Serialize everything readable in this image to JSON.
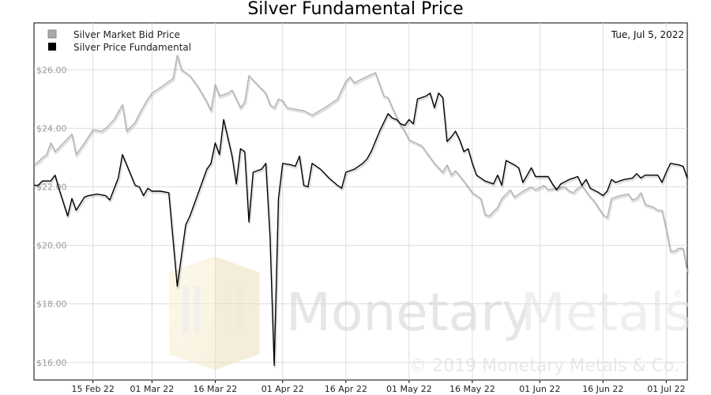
{
  "chart_data": {
    "type": "line",
    "title": "Silver Fundamental Price",
    "date_label": "Tue, Jul 5, 2022",
    "watermark_brand": "MonetaryMetals",
    "watermark_brand_part1": "Monetary",
    "watermark_brand_part2": "Metals",
    "watermark_registered": "®",
    "watermark_copyright": "© 2019 Monetary Metals & Co.",
    "x_range": [
      "2022-02-01",
      "2022-07-06"
    ],
    "ylim": [
      15.4,
      27.6
    ],
    "y_ticks": [
      16,
      18,
      20,
      22,
      24,
      26
    ],
    "y_tick_labels": [
      "$16.00",
      "$18.00",
      "$20.00",
      "$22.00",
      "$24.00",
      "$26.00"
    ],
    "x_ticks": [
      "2022-02-15",
      "2022-03-01",
      "2022-03-16",
      "2022-04-01",
      "2022-04-16",
      "2022-05-01",
      "2022-05-16",
      "2022-06-01",
      "2022-06-16",
      "2022-07-01"
    ],
    "x_tick_labels": [
      "15 Feb 22",
      "01 Mar 22",
      "16 Mar 22",
      "01 Apr 22",
      "16 Apr 22",
      "01 May 22",
      "16 May 22",
      "01 Jun 22",
      "16 Jun 22",
      "01 Jul 22"
    ],
    "grid": true,
    "legend_position": "top-left",
    "series": [
      {
        "name": "Silver Market Bid Price",
        "color": "#b0b0b0",
        "points": [
          [
            "2022-02-01",
            22.75
          ],
          [
            "2022-02-02",
            22.85
          ],
          [
            "2022-02-03",
            23.0
          ],
          [
            "2022-02-04",
            23.1
          ],
          [
            "2022-02-05",
            23.5
          ],
          [
            "2022-02-06",
            23.2
          ],
          [
            "2022-02-08",
            23.5
          ],
          [
            "2022-02-10",
            23.8
          ],
          [
            "2022-02-11",
            23.1
          ],
          [
            "2022-02-13",
            23.5
          ],
          [
            "2022-02-15",
            23.95
          ],
          [
            "2022-02-17",
            23.9
          ],
          [
            "2022-02-18",
            24.0
          ],
          [
            "2022-02-20",
            24.3
          ],
          [
            "2022-02-22",
            24.8
          ],
          [
            "2022-02-23",
            23.9
          ],
          [
            "2022-02-25",
            24.2
          ],
          [
            "2022-02-26",
            24.5
          ],
          [
            "2022-02-28",
            25.0
          ],
          [
            "2022-03-01",
            25.2
          ],
          [
            "2022-03-03",
            25.4
          ],
          [
            "2022-03-05",
            25.6
          ],
          [
            "2022-03-06",
            25.7
          ],
          [
            "2022-03-07",
            26.5
          ],
          [
            "2022-03-08",
            26.0
          ],
          [
            "2022-03-10",
            25.8
          ],
          [
            "2022-03-12",
            25.4
          ],
          [
            "2022-03-14",
            24.9
          ],
          [
            "2022-03-15",
            24.6
          ],
          [
            "2022-03-16",
            25.5
          ],
          [
            "2022-03-17",
            25.1
          ],
          [
            "2022-03-19",
            25.2
          ],
          [
            "2022-03-20",
            25.3
          ],
          [
            "2022-03-22",
            24.7
          ],
          [
            "2022-03-23",
            24.9
          ],
          [
            "2022-03-24",
            25.8
          ],
          [
            "2022-03-26",
            25.5
          ],
          [
            "2022-03-28",
            25.2
          ],
          [
            "2022-03-29",
            24.8
          ],
          [
            "2022-03-30",
            24.7
          ],
          [
            "2022-03-31",
            25.0
          ],
          [
            "2022-04-01",
            24.95
          ],
          [
            "2022-04-02",
            24.7
          ],
          [
            "2022-04-06",
            24.6
          ],
          [
            "2022-04-08",
            24.45
          ],
          [
            "2022-04-11",
            24.7
          ],
          [
            "2022-04-14",
            25.0
          ],
          [
            "2022-04-15",
            25.3
          ],
          [
            "2022-04-16",
            25.6
          ],
          [
            "2022-04-17",
            25.75
          ],
          [
            "2022-04-18",
            25.55
          ],
          [
            "2022-04-20",
            25.7
          ],
          [
            "2022-04-23",
            25.9
          ],
          [
            "2022-04-25",
            25.1
          ],
          [
            "2022-04-26",
            25.05
          ],
          [
            "2022-04-27",
            24.7
          ],
          [
            "2022-04-28",
            24.4
          ],
          [
            "2022-04-29",
            24.1
          ],
          [
            "2022-04-30",
            23.9
          ],
          [
            "2022-05-01",
            23.6
          ],
          [
            "2022-05-04",
            23.4
          ],
          [
            "2022-05-05",
            23.2
          ],
          [
            "2022-05-07",
            22.8
          ],
          [
            "2022-05-09",
            22.5
          ],
          [
            "2022-05-10",
            22.75
          ],
          [
            "2022-05-11",
            22.4
          ],
          [
            "2022-05-12",
            22.55
          ],
          [
            "2022-05-14",
            22.2
          ],
          [
            "2022-05-16",
            21.8
          ],
          [
            "2022-05-18",
            21.6
          ],
          [
            "2022-05-19",
            21.05
          ],
          [
            "2022-05-20",
            21.0
          ],
          [
            "2022-05-22",
            21.3
          ],
          [
            "2022-05-23",
            21.6
          ],
          [
            "2022-05-25",
            21.9
          ],
          [
            "2022-05-26",
            21.65
          ],
          [
            "2022-05-27",
            21.75
          ],
          [
            "2022-05-28",
            21.85
          ],
          [
            "2022-05-30",
            22.0
          ],
          [
            "2022-05-31",
            21.9
          ],
          [
            "2022-06-02",
            22.05
          ],
          [
            "2022-06-03",
            21.9
          ],
          [
            "2022-06-05",
            21.95
          ],
          [
            "2022-06-07",
            22.0
          ],
          [
            "2022-06-08",
            21.85
          ],
          [
            "2022-06-09",
            21.8
          ],
          [
            "2022-06-10",
            21.95
          ],
          [
            "2022-06-11",
            22.05
          ],
          [
            "2022-06-13",
            21.65
          ],
          [
            "2022-06-14",
            21.5
          ],
          [
            "2022-06-16",
            21.05
          ],
          [
            "2022-06-17",
            20.95
          ],
          [
            "2022-06-18",
            21.6
          ],
          [
            "2022-06-20",
            21.7
          ],
          [
            "2022-06-22",
            21.75
          ],
          [
            "2022-06-23",
            21.55
          ],
          [
            "2022-06-24",
            21.6
          ],
          [
            "2022-06-25",
            21.8
          ],
          [
            "2022-06-26",
            21.4
          ],
          [
            "2022-06-28",
            21.3
          ],
          [
            "2022-06-29",
            21.2
          ],
          [
            "2022-06-30",
            21.2
          ],
          [
            "2022-07-01",
            20.55
          ],
          [
            "2022-07-02",
            19.8
          ],
          [
            "2022-07-03",
            19.8
          ],
          [
            "2022-07-04",
            19.9
          ],
          [
            "2022-07-05",
            19.9
          ],
          [
            "2022-07-06",
            19.1
          ]
        ]
      },
      {
        "name": "Silver Price Fundamental",
        "color": "#000000",
        "points": [
          [
            "2022-02-01",
            22.05
          ],
          [
            "2022-02-02",
            22.05
          ],
          [
            "2022-02-03",
            22.2
          ],
          [
            "2022-02-05",
            22.2
          ],
          [
            "2022-02-06",
            22.4
          ],
          [
            "2022-02-07",
            21.9
          ],
          [
            "2022-02-09",
            21.0
          ],
          [
            "2022-02-10",
            21.6
          ],
          [
            "2022-02-11",
            21.2
          ],
          [
            "2022-02-13",
            21.65
          ],
          [
            "2022-02-14",
            21.7
          ],
          [
            "2022-02-16",
            21.75
          ],
          [
            "2022-02-18",
            21.7
          ],
          [
            "2022-02-19",
            21.55
          ],
          [
            "2022-02-21",
            22.3
          ],
          [
            "2022-02-22",
            23.1
          ],
          [
            "2022-02-25",
            22.05
          ],
          [
            "2022-02-26",
            22.0
          ],
          [
            "2022-02-27",
            21.7
          ],
          [
            "2022-02-28",
            21.95
          ],
          [
            "2022-03-01",
            21.85
          ],
          [
            "2022-03-03",
            21.85
          ],
          [
            "2022-03-05",
            21.8
          ],
          [
            "2022-03-07",
            18.6
          ],
          [
            "2022-03-09",
            20.7
          ],
          [
            "2022-03-10",
            21.0
          ],
          [
            "2022-03-14",
            22.6
          ],
          [
            "2022-03-15",
            22.8
          ],
          [
            "2022-03-16",
            23.5
          ],
          [
            "2022-03-17",
            23.1
          ],
          [
            "2022-03-18",
            24.3
          ],
          [
            "2022-03-20",
            23.05
          ],
          [
            "2022-03-21",
            22.1
          ],
          [
            "2022-03-22",
            23.3
          ],
          [
            "2022-03-23",
            23.2
          ],
          [
            "2022-03-24",
            20.8
          ],
          [
            "2022-03-25",
            22.5
          ],
          [
            "2022-03-27",
            22.6
          ],
          [
            "2022-03-28",
            22.8
          ],
          [
            "2022-03-29",
            20.3
          ],
          [
            "2022-03-30",
            15.9
          ],
          [
            "2022-03-31",
            21.6
          ],
          [
            "2022-04-01",
            22.8
          ],
          [
            "2022-04-03",
            22.75
          ],
          [
            "2022-04-04",
            22.7
          ],
          [
            "2022-04-05",
            23.05
          ],
          [
            "2022-04-06",
            22.05
          ],
          [
            "2022-04-07",
            22.0
          ],
          [
            "2022-04-08",
            22.8
          ],
          [
            "2022-04-10",
            22.6
          ],
          [
            "2022-04-12",
            22.3
          ],
          [
            "2022-04-14",
            22.05
          ],
          [
            "2022-04-15",
            21.95
          ],
          [
            "2022-04-16",
            22.5
          ],
          [
            "2022-04-18",
            22.6
          ],
          [
            "2022-04-20",
            22.8
          ],
          [
            "2022-04-21",
            22.95
          ],
          [
            "2022-04-22",
            23.2
          ],
          [
            "2022-04-24",
            23.9
          ],
          [
            "2022-04-26",
            24.5
          ],
          [
            "2022-04-27",
            24.35
          ],
          [
            "2022-04-28",
            24.3
          ],
          [
            "2022-04-29",
            24.15
          ],
          [
            "2022-04-30",
            24.1
          ],
          [
            "2022-05-01",
            24.3
          ],
          [
            "2022-05-02",
            24.15
          ],
          [
            "2022-05-03",
            25.0
          ],
          [
            "2022-05-05",
            25.1
          ],
          [
            "2022-05-06",
            25.2
          ],
          [
            "2022-05-07",
            24.7
          ],
          [
            "2022-05-08",
            25.2
          ],
          [
            "2022-05-09",
            25.05
          ],
          [
            "2022-05-10",
            23.55
          ],
          [
            "2022-05-11",
            23.7
          ],
          [
            "2022-05-12",
            23.9
          ],
          [
            "2022-05-13",
            23.6
          ],
          [
            "2022-05-14",
            23.2
          ],
          [
            "2022-05-15",
            23.3
          ],
          [
            "2022-05-16",
            22.8
          ],
          [
            "2022-05-17",
            22.4
          ],
          [
            "2022-05-18",
            22.3
          ],
          [
            "2022-05-19",
            22.2
          ],
          [
            "2022-05-20",
            22.15
          ],
          [
            "2022-05-21",
            22.1
          ],
          [
            "2022-05-22",
            22.4
          ],
          [
            "2022-05-23",
            22.05
          ],
          [
            "2022-05-24",
            22.9
          ],
          [
            "2022-05-26",
            22.75
          ],
          [
            "2022-05-27",
            22.65
          ],
          [
            "2022-05-28",
            22.15
          ],
          [
            "2022-05-29",
            22.4
          ],
          [
            "2022-05-30",
            22.65
          ],
          [
            "2022-05-31",
            22.35
          ],
          [
            "2022-06-02",
            22.35
          ],
          [
            "2022-06-03",
            22.35
          ],
          [
            "2022-06-04",
            22.1
          ],
          [
            "2022-06-05",
            21.9
          ],
          [
            "2022-06-06",
            22.1
          ],
          [
            "2022-06-08",
            22.25
          ],
          [
            "2022-06-09",
            22.3
          ],
          [
            "2022-06-10",
            22.35
          ],
          [
            "2022-06-11",
            22.05
          ],
          [
            "2022-06-12",
            22.25
          ],
          [
            "2022-06-13",
            21.95
          ],
          [
            "2022-06-15",
            21.8
          ],
          [
            "2022-06-16",
            21.7
          ],
          [
            "2022-06-17",
            21.85
          ],
          [
            "2022-06-18",
            22.25
          ],
          [
            "2022-06-19",
            22.15
          ],
          [
            "2022-06-21",
            22.25
          ],
          [
            "2022-06-23",
            22.3
          ],
          [
            "2022-06-24",
            22.45
          ],
          [
            "2022-06-25",
            22.3
          ],
          [
            "2022-06-26",
            22.4
          ],
          [
            "2022-06-28",
            22.4
          ],
          [
            "2022-06-29",
            22.4
          ],
          [
            "2022-06-30",
            22.15
          ],
          [
            "2022-07-01",
            22.5
          ],
          [
            "2022-07-02",
            22.8
          ],
          [
            "2022-07-04",
            22.75
          ],
          [
            "2022-07-05",
            22.7
          ],
          [
            "2022-07-06",
            22.3
          ]
        ]
      }
    ]
  }
}
